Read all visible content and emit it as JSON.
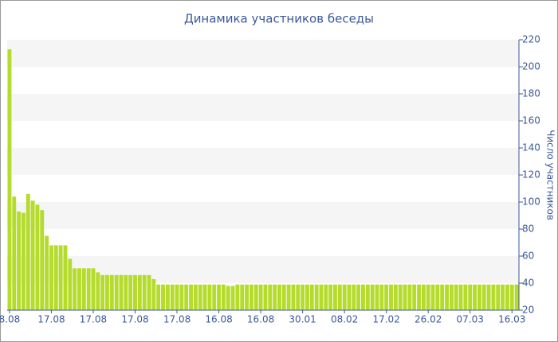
{
  "chart_data": {
    "type": "bar",
    "title": "Динамика участников беседы",
    "y_label": "Число участников",
    "categories": [
      "8.08",
      null,
      null,
      null,
      null,
      null,
      null,
      null,
      null,
      "17.08",
      null,
      null,
      null,
      null,
      null,
      null,
      null,
      null,
      "17.08",
      null,
      null,
      null,
      null,
      null,
      null,
      null,
      null,
      "17.08",
      null,
      null,
      null,
      null,
      null,
      null,
      null,
      null,
      "17.08",
      null,
      null,
      null,
      null,
      null,
      null,
      null,
      null,
      "16.08",
      null,
      null,
      null,
      null,
      null,
      null,
      null,
      null,
      "16.08",
      null,
      null,
      null,
      null,
      null,
      null,
      null,
      null,
      "30.01",
      null,
      null,
      null,
      null,
      null,
      null,
      null,
      null,
      "08.02",
      null,
      null,
      null,
      null,
      null,
      null,
      null,
      null,
      "17.02",
      null,
      null,
      null,
      null,
      null,
      null,
      null,
      null,
      "26.02",
      null,
      null,
      null,
      null,
      null,
      null,
      null,
      null,
      "07.03",
      null,
      null,
      null,
      null,
      null,
      null,
      null,
      null,
      "16.03",
      null
    ],
    "values": [
      213,
      104,
      93,
      92,
      106,
      101,
      98,
      94,
      75,
      68,
      68,
      68,
      68,
      58,
      51,
      51,
      51,
      51,
      51,
      48,
      46,
      46,
      46,
      46,
      46,
      46,
      46,
      46,
      46,
      46,
      46,
      43,
      39,
      39,
      39,
      39,
      39,
      39,
      39,
      39,
      39,
      39,
      39,
      39,
      39,
      39,
      39,
      38,
      38,
      39,
      39,
      39,
      39,
      39,
      39,
      39,
      39,
      39,
      39,
      39,
      39,
      39,
      39,
      39,
      39,
      39,
      39,
      39,
      39,
      39,
      39,
      39,
      39,
      39,
      39,
      39,
      39,
      39,
      39,
      39,
      39,
      39,
      39,
      39,
      39,
      39,
      39,
      39,
      39,
      39,
      39,
      39,
      39,
      39,
      39,
      39,
      39,
      39,
      39,
      39,
      39,
      39,
      39,
      39,
      39,
      39,
      39,
      39,
      39,
      39
    ],
    "color": "#b5dc2c",
    "ylim": [
      20,
      220
    ],
    "yticks": [
      20,
      40,
      60,
      80,
      100,
      120,
      140,
      160,
      180,
      200,
      220
    ],
    "y_axis_side": "right",
    "grid": "bands"
  }
}
